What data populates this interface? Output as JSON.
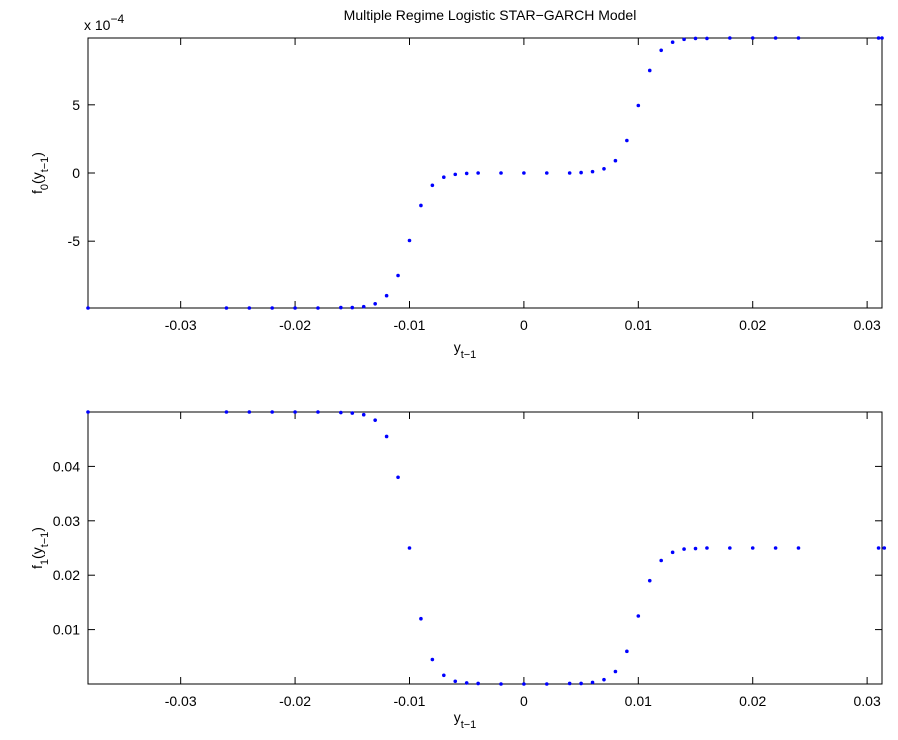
{
  "chart_data": [
    {
      "type": "scatter",
      "title": "Multiple Regime Logistic STAR−GARCH Model",
      "y_scale_base": "x 10",
      "y_scale_exponent": "−4",
      "xlabel": [
        {
          "text": "y"
        },
        {
          "text": "t−1",
          "sub": true
        }
      ],
      "ylabel": [
        {
          "text": "f"
        },
        {
          "text": "0",
          "sub": true
        },
        {
          "text": "(y"
        },
        {
          "text": "t−1",
          "sub": true
        },
        {
          "text": ")"
        }
      ],
      "x": [
        -0.0381,
        -0.026,
        -0.024,
        -0.022,
        -0.02,
        -0.018,
        -0.016,
        -0.015,
        -0.014,
        -0.013,
        -0.012,
        -0.011,
        -0.01,
        -0.009,
        -0.008,
        -0.007,
        -0.006,
        -0.005,
        -0.004,
        -0.002,
        0,
        0.002,
        0.004,
        0.005,
        0.006,
        0.007,
        0.008,
        0.009,
        0.01,
        0.011,
        0.012,
        0.013,
        0.014,
        0.015,
        0.016,
        0.018,
        0.02,
        0.022,
        0.024,
        0.031,
        0.0313
      ],
      "values": [
        -9.9,
        -9.9,
        -9.9,
        -9.9,
        -9.9,
        -9.9,
        -9.87,
        -9.87,
        -9.8,
        -9.59,
        -9.0,
        -7.52,
        -4.95,
        -2.38,
        -0.9,
        -0.31,
        -0.1,
        -0.03,
        0,
        0,
        0,
        0,
        0,
        0.03,
        0.1,
        0.31,
        0.9,
        2.38,
        4.95,
        7.52,
        9.0,
        9.59,
        9.8,
        9.87,
        9.87,
        9.9,
        9.9,
        9.9,
        9.9,
        9.9,
        9.9
      ],
      "color": "#0000ff",
      "xlim": [
        -0.0381,
        0.0313
      ],
      "xticks": [
        -0.03,
        -0.02,
        -0.01,
        0,
        0.01,
        0.02,
        0.03
      ],
      "ylim": [
        -9.9,
        9.9
      ],
      "yticks": [
        -5,
        0,
        5
      ]
    },
    {
      "type": "scatter",
      "xlabel": [
        {
          "text": "y"
        },
        {
          "text": "t−1",
          "sub": true
        }
      ],
      "ylabel": [
        {
          "text": "f"
        },
        {
          "text": "1",
          "sub": true
        },
        {
          "text": "(y"
        },
        {
          "text": "t−1",
          "sub": true
        },
        {
          "text": ")"
        }
      ],
      "x": [
        -0.0381,
        -0.026,
        -0.024,
        -0.022,
        -0.02,
        -0.018,
        -0.016,
        -0.015,
        -0.014,
        -0.013,
        -0.012,
        -0.011,
        -0.01,
        -0.009,
        -0.008,
        -0.007,
        -0.006,
        -0.005,
        -0.004,
        -0.002,
        0,
        0.002,
        0.004,
        0.005,
        0.006,
        0.007,
        0.008,
        0.009,
        0.01,
        0.011,
        0.012,
        0.013,
        0.014,
        0.015,
        0.016,
        0.018,
        0.02,
        0.022,
        0.024,
        0.031,
        0.0315
      ],
      "values": [
        0.05,
        0.05,
        0.05,
        0.05,
        0.05,
        0.05,
        0.0499,
        0.0498,
        0.0495,
        0.0485,
        0.0455,
        0.038,
        0.025,
        0.012,
        0.0045,
        0.0016,
        0.0005,
        0.0002,
        0.0001,
        0,
        0,
        0,
        0.0001,
        0.0001,
        0.0003,
        0.0008,
        0.0023,
        0.006,
        0.0125,
        0.019,
        0.0227,
        0.0242,
        0.0248,
        0.0249,
        0.025,
        0.025,
        0.025,
        0.025,
        0.025,
        0.025,
        0.025
      ],
      "color": "#0000ff",
      "xlim": [
        -0.0381,
        0.0313
      ],
      "xticks": [
        -0.03,
        -0.02,
        -0.01,
        0,
        0.01,
        0.02,
        0.03
      ],
      "ylim": [
        0,
        0.05
      ],
      "yticks": [
        0.01,
        0.02,
        0.03,
        0.04
      ]
    }
  ]
}
